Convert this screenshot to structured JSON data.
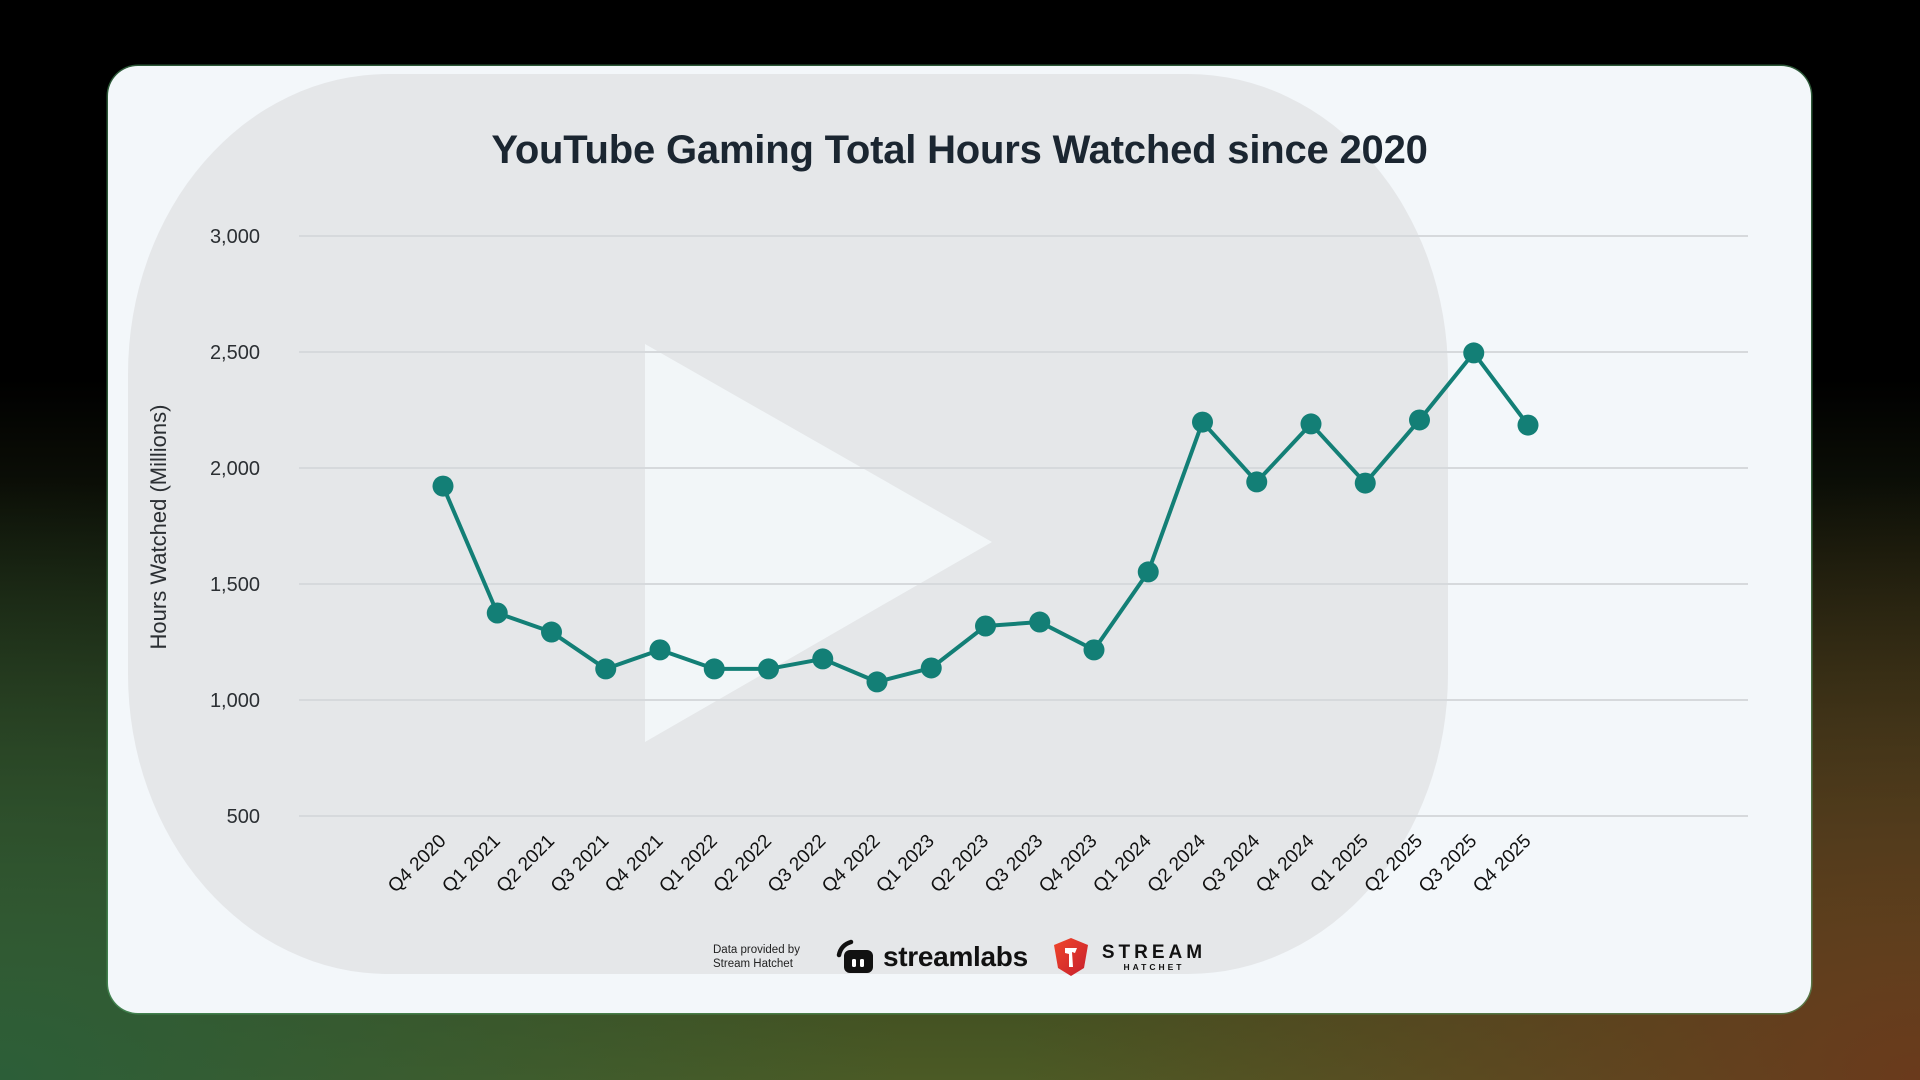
{
  "title": "YouTube Gaming Total Hours Watched since 2020",
  "footer": {
    "credit_line1": "Data provided by",
    "credit_line2": "Stream Hatchet",
    "logo1": "streamlabs",
    "logo2_big": "STREAM",
    "logo2_small": "HATCHET"
  },
  "colors": {
    "line": "#137f76",
    "grid": "#d6d9dc",
    "title": "#1b2631",
    "axis_text": "#2b2f33"
  },
  "chart_data": {
    "type": "line",
    "title": "YouTube Gaming Total Hours Watched since 2020",
    "xlabel": "",
    "ylabel": "Hours Watched (Millions)",
    "ylim": [
      500,
      3000
    ],
    "yticks": [
      500,
      1000,
      1500,
      2000,
      2500,
      3000
    ],
    "ytick_labels": [
      "500",
      "1,000",
      "1,500",
      "2,000",
      "2,500",
      "3,000"
    ],
    "grid": true,
    "legend": "none",
    "categories": [
      "Q4 2020",
      "Q1 2021",
      "Q2 2021",
      "Q3 2021",
      "Q4 2021",
      "Q1 2022",
      "Q2 2022",
      "Q3 2022",
      "Q4 2022",
      "Q1 2023",
      "Q2 2023",
      "Q3 2023",
      "Q4 2023",
      "Q1 2024",
      "Q2 2024",
      "Q3 2024",
      "Q4 2024",
      "Q1 2025",
      "Q2 2025",
      "Q3 2025",
      "Q4 2025"
    ],
    "series": [
      {
        "name": "Hours Watched (Millions)",
        "values": [
          1922,
          1375,
          1293,
          1134,
          1216,
          1134,
          1134,
          1177,
          1078,
          1138,
          1319,
          1336,
          1216,
          1552,
          2198,
          1940,
          2190,
          1935,
          2207,
          2496,
          2185
        ]
      }
    ]
  }
}
